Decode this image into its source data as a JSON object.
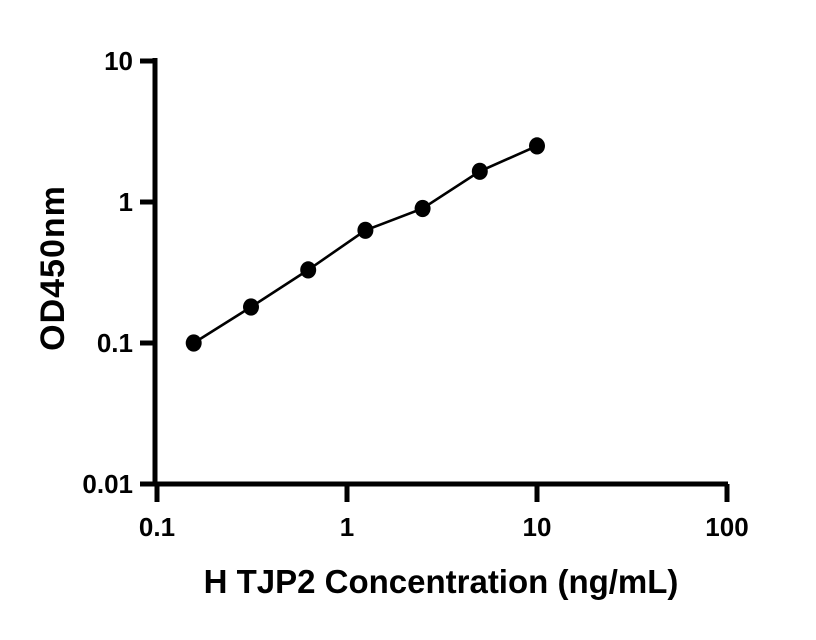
{
  "chart_data": {
    "type": "scatter",
    "subtype": "line-with-markers",
    "x": [
      0.156,
      0.3125,
      0.625,
      1.25,
      2.5,
      5,
      10
    ],
    "y": [
      0.1,
      0.18,
      0.33,
      0.63,
      0.9,
      1.65,
      2.5
    ],
    "xlabel": "H TJP2 Concentration (ng/mL)",
    "ylabel": "OD450nm",
    "xscale": "log",
    "yscale": "log",
    "xlim": [
      0.1,
      100
    ],
    "ylim": [
      0.01,
      10
    ],
    "xticks": [
      {
        "value": 0.1,
        "label": "0.1"
      },
      {
        "value": 1,
        "label": "1"
      },
      {
        "value": 10,
        "label": "10"
      },
      {
        "value": 100,
        "label": "100"
      }
    ],
    "yticks": [
      {
        "value": 0.01,
        "label": "0.01"
      },
      {
        "value": 0.1,
        "label": "0.1"
      },
      {
        "value": 1,
        "label": "1"
      },
      {
        "value": 10,
        "label": "10"
      }
    ],
    "grid": false,
    "legend": "none",
    "marker": "filled-circle",
    "colors": {
      "axis": "#000000",
      "line": "#000000",
      "marker": "#000000",
      "background": "#ffffff"
    }
  }
}
